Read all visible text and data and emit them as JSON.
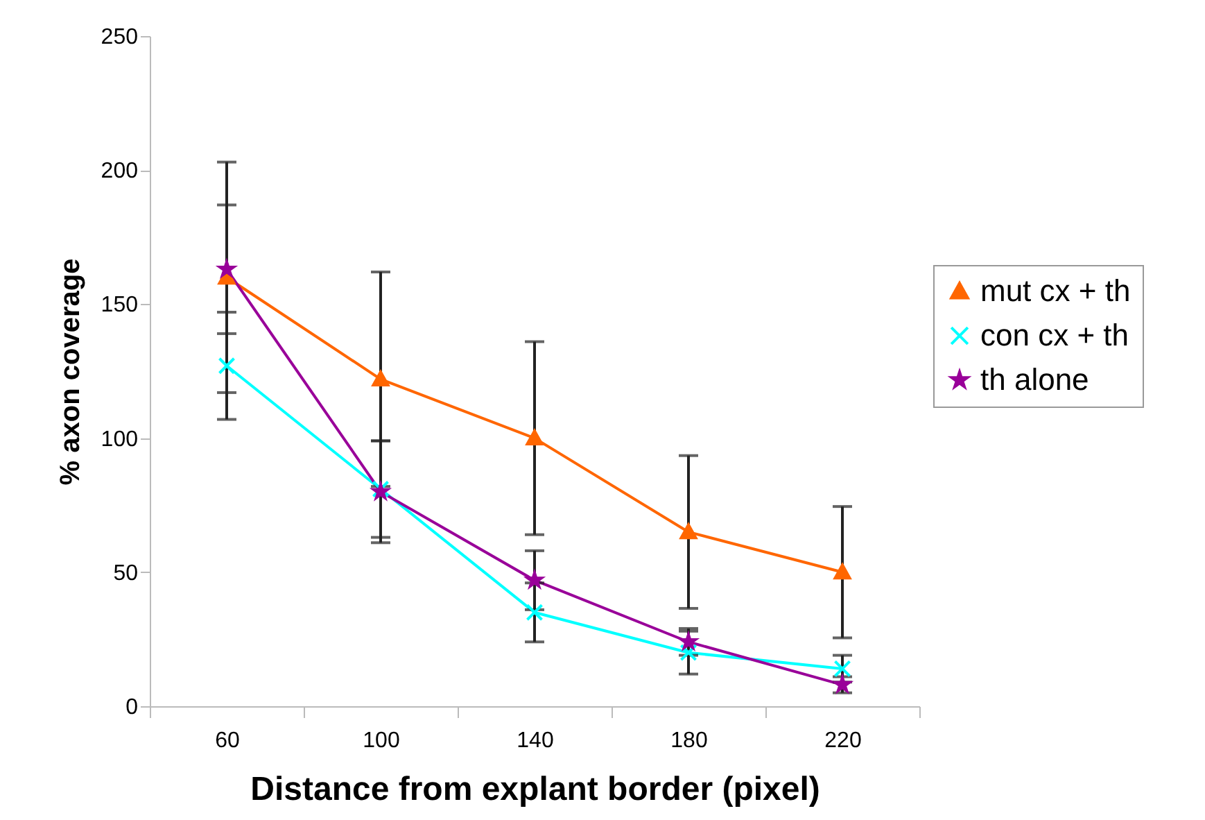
{
  "chart_data": {
    "type": "line",
    "xlabel": "Distance from explant border (pixel)",
    "ylabel": "% axon coverage",
    "categories": [
      "60",
      "100",
      "140",
      "180",
      "220"
    ],
    "series": [
      {
        "name": "mut cx + th",
        "color": "#ff6600",
        "marker": "triangle",
        "values": [
          160,
          122,
          100,
          65,
          50
        ],
        "errors": [
          43,
          40,
          36,
          28.5,
          24.5
        ]
      },
      {
        "name": "con cx + th",
        "color": "#00ffff",
        "marker": "cross",
        "values": [
          127,
          81,
          35,
          20,
          14
        ],
        "errors": [
          20,
          18,
          11,
          8,
          5
        ]
      },
      {
        "name": "th alone",
        "color": "#990099",
        "marker": "star",
        "values": [
          163,
          80,
          47,
          24,
          8
        ],
        "errors": [
          24,
          19,
          11,
          5,
          3
        ]
      }
    ],
    "ylim": [
      0,
      250
    ],
    "yticks": [
      0,
      50,
      100,
      150,
      200,
      250
    ],
    "grid": false,
    "legend": "right"
  }
}
